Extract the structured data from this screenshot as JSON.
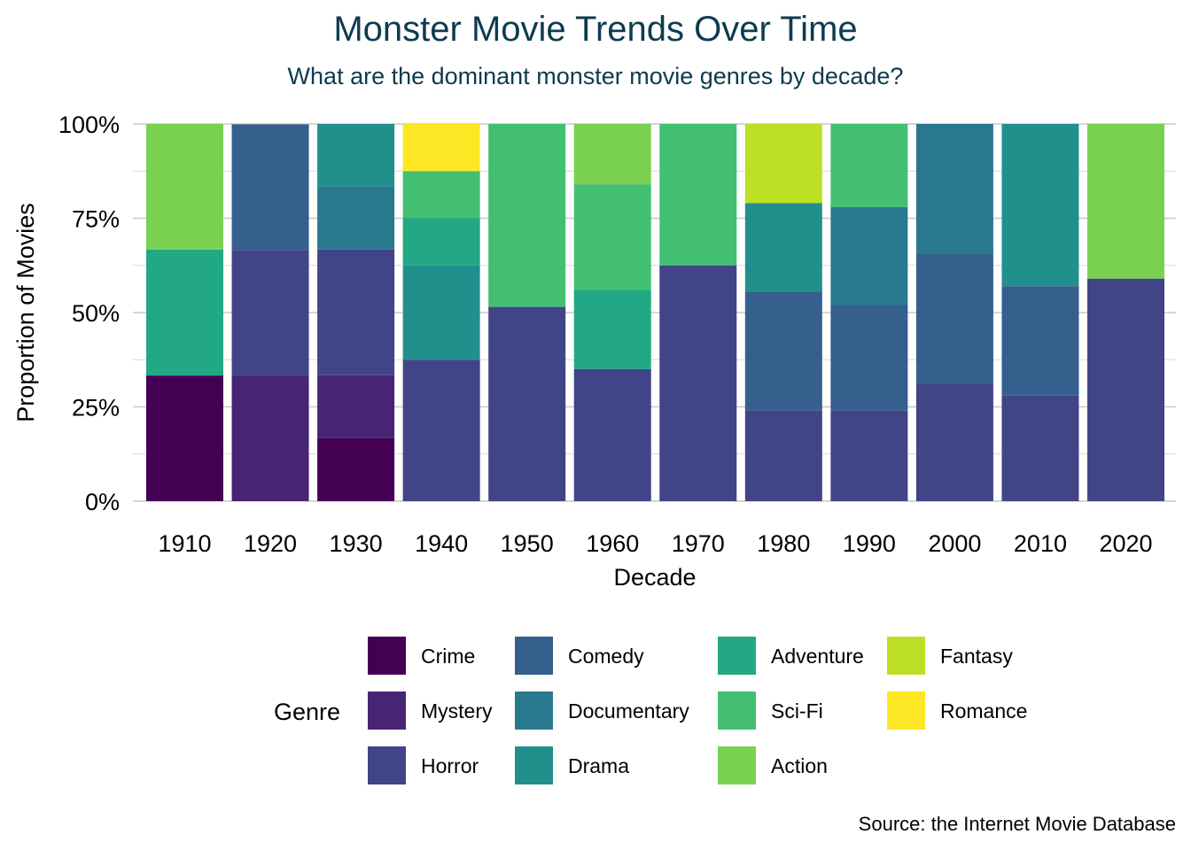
{
  "chart_data": {
    "type": "bar",
    "stacked": "proportion",
    "title": "Monster Movie Trends Over Time",
    "subtitle": "What are the dominant monster movie genres by decade?",
    "caption": "Source: the Internet Movie Database",
    "xlabel": "Decade",
    "ylabel": "Proportion of Movies",
    "ylim": [
      0,
      1
    ],
    "yticks": [
      0,
      0.25,
      0.5,
      0.75,
      1
    ],
    "ytick_labels": [
      "0%",
      "25%",
      "50%",
      "75%",
      "100%"
    ],
    "grid": true,
    "legend_title": "Genre",
    "legend_position": "bottom",
    "categories": [
      "1910",
      "1920",
      "1930",
      "1940",
      "1950",
      "1960",
      "1970",
      "1980",
      "1990",
      "2000",
      "2010",
      "2020"
    ],
    "series": [
      {
        "name": "Crime",
        "color": "#440154",
        "values": [
          0.333,
          0,
          0.167,
          0,
          0,
          0,
          0,
          0,
          0,
          0,
          0,
          0
        ]
      },
      {
        "name": "Mystery",
        "color": "#482475",
        "values": [
          0,
          0.333,
          0.167,
          0,
          0,
          0,
          0,
          0,
          0,
          0,
          0,
          0
        ]
      },
      {
        "name": "Horror",
        "color": "#414487",
        "values": [
          0,
          0.333,
          0.333,
          0.375,
          0.515,
          0.35,
          0.625,
          0.24,
          0.24,
          0.31,
          0.28,
          0.59
        ]
      },
      {
        "name": "Comedy",
        "color": "#355f8d",
        "values": [
          0,
          0.333,
          0,
          0,
          0,
          0,
          0,
          0.315,
          0.28,
          0.345,
          0.29,
          0
        ]
      },
      {
        "name": "Documentary",
        "color": "#2a788e",
        "values": [
          0,
          0,
          0.167,
          0,
          0,
          0,
          0,
          0,
          0.26,
          0.345,
          0,
          0
        ]
      },
      {
        "name": "Drama",
        "color": "#21908d",
        "values": [
          0,
          0,
          0.166,
          0.25,
          0,
          0,
          0,
          0.235,
          0,
          0,
          0.43,
          0
        ]
      },
      {
        "name": "Adventure",
        "color": "#22a884",
        "values": [
          0.334,
          0,
          0,
          0.125,
          0,
          0.21,
          0,
          0,
          0,
          0,
          0,
          0
        ]
      },
      {
        "name": "Sci-Fi",
        "color": "#43bf71",
        "values": [
          0,
          0,
          0,
          0.125,
          0.485,
          0.28,
          0.375,
          0,
          0.22,
          0,
          0,
          0
        ]
      },
      {
        "name": "Action",
        "color": "#7ad151",
        "values": [
          0.333,
          0,
          0,
          0,
          0,
          0.16,
          0,
          0,
          0,
          0,
          0,
          0.41
        ]
      },
      {
        "name": "Fantasy",
        "color": "#bddf26",
        "values": [
          0,
          0,
          0,
          0,
          0,
          0,
          0,
          0.21,
          0,
          0,
          0,
          0
        ]
      },
      {
        "name": "Romance",
        "color": "#fde725",
        "values": [
          0,
          0,
          0,
          0.125,
          0,
          0,
          0,
          0,
          0,
          0,
          0,
          0
        ]
      }
    ]
  },
  "colors": {
    "title": "#0d3b4f",
    "grid": "#d9d9d9",
    "text": "#000000"
  }
}
